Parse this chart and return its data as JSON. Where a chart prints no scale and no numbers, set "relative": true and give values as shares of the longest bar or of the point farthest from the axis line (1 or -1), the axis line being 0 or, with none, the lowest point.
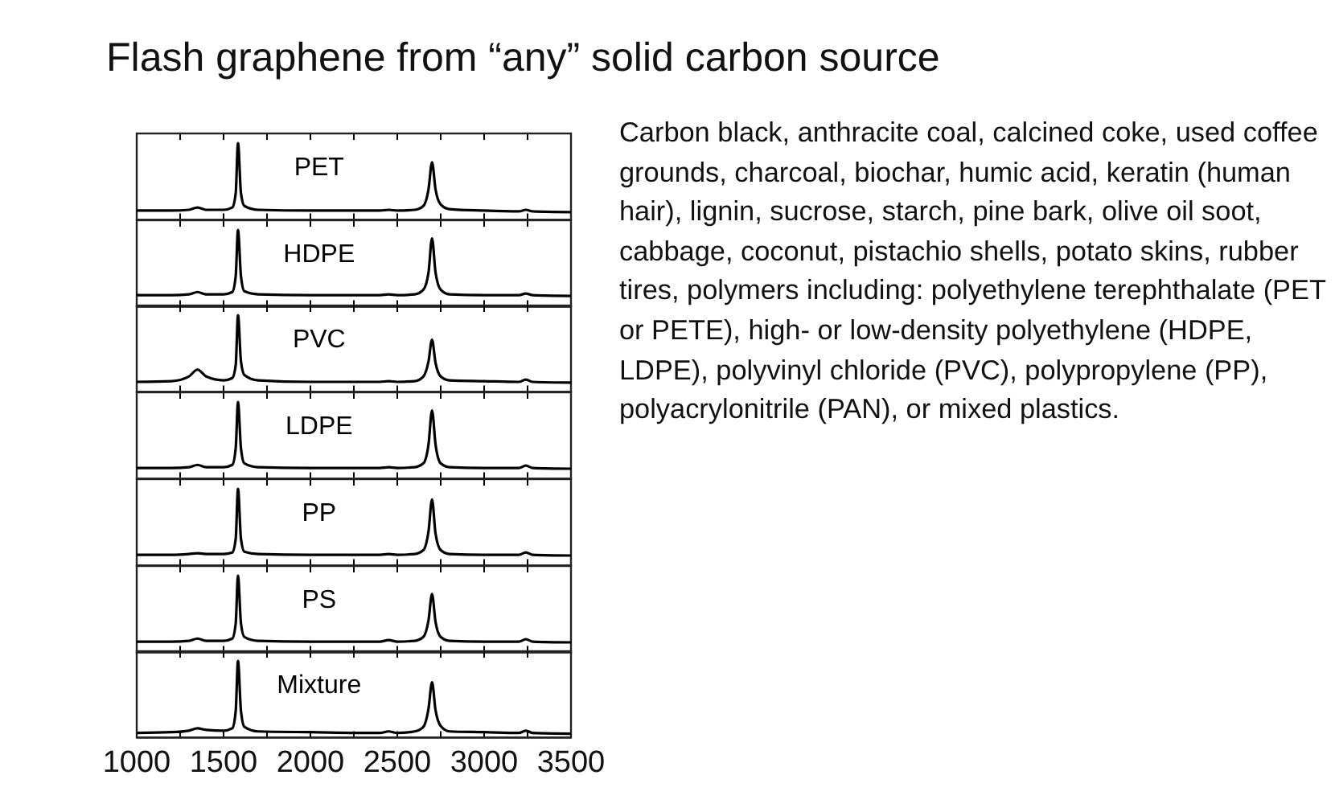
{
  "chart_data": [
    {
      "type": "line",
      "title": "Flash graphene from “any” solid carbon source",
      "relative": true,
      "xlim": [
        1000,
        3500
      ],
      "xticks": [
        1000,
        {
          "value": 1250,
          "label": null
        },
        1500,
        {
          "value": 1750,
          "label": null
        },
        2000,
        {
          "value": 2250,
          "label": null
        },
        2500,
        {
          "value": 2750,
          "label": null
        },
        3000,
        {
          "value": 3250,
          "label": null
        },
        3500
      ],
      "tick_labels": false,
      "x": [
        1000,
        1200,
        1300,
        1350,
        1400,
        1500,
        1550,
        1570,
        1583,
        1600,
        1620,
        1700,
        2000,
        2400,
        2450,
        2500,
        2600,
        2650,
        2680,
        2700,
        2720,
        2750,
        2800,
        3000,
        3200,
        3240,
        3280,
        3500
      ],
      "series": [
        {
          "name": "PET",
          "color": "#000000",
          "values": [
            0.12,
            0.12,
            0.13,
            0.16,
            0.13,
            0.13,
            0.16,
            0.35,
            1,
            0.35,
            0.18,
            0.13,
            0.12,
            0.12,
            0.13,
            0.12,
            0.13,
            0.18,
            0.4,
            0.75,
            0.4,
            0.2,
            0.14,
            0.12,
            0.11,
            0.13,
            0.11,
            0.1
          ]
        }
      ]
    },
    {
      "type": "line",
      "relative": true,
      "xlim": [
        1000,
        3500
      ],
      "xticks": [
        1000,
        {
          "value": 1250,
          "label": null
        },
        1500,
        {
          "value": 1750,
          "label": null
        },
        2000,
        {
          "value": 2250,
          "label": null
        },
        2500,
        {
          "value": 2750,
          "label": null
        },
        3000,
        {
          "value": 3250,
          "label": null
        },
        3500
      ],
      "tick_labels": false,
      "x": [
        1000,
        1200,
        1300,
        1350,
        1400,
        1500,
        1550,
        1570,
        1583,
        1600,
        1620,
        1700,
        2000,
        2400,
        2450,
        2500,
        2600,
        2650,
        2680,
        2700,
        2720,
        2750,
        2800,
        3000,
        3200,
        3240,
        3280,
        3500
      ],
      "series": [
        {
          "name": "HDPE",
          "color": "#000000",
          "values": [
            0.15,
            0.15,
            0.16,
            0.19,
            0.16,
            0.16,
            0.19,
            0.4,
            1,
            0.4,
            0.2,
            0.16,
            0.15,
            0.15,
            0.16,
            0.15,
            0.16,
            0.22,
            0.45,
            0.89,
            0.45,
            0.22,
            0.16,
            0.15,
            0.15,
            0.17,
            0.15,
            0.14
          ]
        }
      ]
    },
    {
      "type": "line",
      "relative": true,
      "xlim": [
        1000,
        3500
      ],
      "xticks": [
        1000,
        {
          "value": 1250,
          "label": null
        },
        1500,
        {
          "value": 1750,
          "label": null
        },
        2000,
        {
          "value": 2250,
          "label": null
        },
        2500,
        {
          "value": 2750,
          "label": null
        },
        3000,
        {
          "value": 3250,
          "label": null
        },
        3500
      ],
      "tick_labels": false,
      "x": [
        1000,
        1200,
        1300,
        1350,
        1400,
        1500,
        1550,
        1570,
        1583,
        1600,
        1620,
        1700,
        2000,
        2400,
        2450,
        2500,
        2600,
        2650,
        2680,
        2700,
        2720,
        2750,
        2800,
        3000,
        3200,
        3240,
        3280,
        3500
      ],
      "series": [
        {
          "name": "PVC",
          "color": "#000000",
          "values": [
            0.13,
            0.14,
            0.2,
            0.29,
            0.2,
            0.15,
            0.18,
            0.35,
            1,
            0.4,
            0.22,
            0.15,
            0.13,
            0.13,
            0.14,
            0.13,
            0.14,
            0.2,
            0.4,
            0.68,
            0.38,
            0.2,
            0.15,
            0.14,
            0.13,
            0.16,
            0.13,
            0.12
          ]
        }
      ]
    },
    {
      "type": "line",
      "relative": true,
      "xlim": [
        1000,
        3500
      ],
      "xticks": [
        1000,
        {
          "value": 1250,
          "label": null
        },
        1500,
        {
          "value": 1750,
          "label": null
        },
        2000,
        {
          "value": 2250,
          "label": null
        },
        2500,
        {
          "value": 2750,
          "label": null
        },
        3000,
        {
          "value": 3250,
          "label": null
        },
        3500
      ],
      "tick_labels": false,
      "x": [
        1000,
        1200,
        1300,
        1350,
        1400,
        1500,
        1550,
        1570,
        1583,
        1600,
        1620,
        1700,
        2000,
        2400,
        2450,
        2500,
        2600,
        2650,
        2680,
        2700,
        2720,
        2750,
        2800,
        3000,
        3200,
        3240,
        3280,
        3500
      ],
      "series": [
        {
          "name": "LDPE",
          "color": "#000000",
          "values": [
            0.14,
            0.14,
            0.15,
            0.18,
            0.15,
            0.15,
            0.18,
            0.4,
            1,
            0.4,
            0.2,
            0.15,
            0.14,
            0.14,
            0.15,
            0.14,
            0.15,
            0.2,
            0.45,
            0.89,
            0.45,
            0.2,
            0.15,
            0.14,
            0.14,
            0.17,
            0.14,
            0.13
          ]
        }
      ]
    },
    {
      "type": "line",
      "relative": true,
      "xlim": [
        1000,
        3500
      ],
      "xticks": [
        1000,
        {
          "value": 1250,
          "label": null
        },
        1500,
        {
          "value": 1750,
          "label": null
        },
        2000,
        {
          "value": 2250,
          "label": null
        },
        2500,
        {
          "value": 2750,
          "label": null
        },
        3000,
        {
          "value": 3250,
          "label": null
        },
        3500
      ],
      "tick_labels": false,
      "x": [
        1000,
        1200,
        1300,
        1350,
        1400,
        1500,
        1550,
        1570,
        1583,
        1600,
        1620,
        1700,
        2000,
        2400,
        2450,
        2500,
        2600,
        2650,
        2680,
        2700,
        2720,
        2750,
        2800,
        3000,
        3200,
        3240,
        3280,
        3500
      ],
      "series": [
        {
          "name": "PP",
          "color": "#000000",
          "values": [
            0.14,
            0.14,
            0.15,
            0.16,
            0.15,
            0.15,
            0.17,
            0.35,
            1,
            0.35,
            0.18,
            0.15,
            0.14,
            0.14,
            0.15,
            0.14,
            0.15,
            0.2,
            0.45,
            0.86,
            0.42,
            0.2,
            0.15,
            0.14,
            0.14,
            0.17,
            0.14,
            0.13
          ]
        }
      ]
    },
    {
      "type": "line",
      "relative": true,
      "xlim": [
        1000,
        3500
      ],
      "xticks": [
        1000,
        {
          "value": 1250,
          "label": null
        },
        1500,
        {
          "value": 1750,
          "label": null
        },
        2000,
        {
          "value": 2250,
          "label": null
        },
        2500,
        {
          "value": 2750,
          "label": null
        },
        3000,
        {
          "value": 3250,
          "label": null
        },
        3500
      ],
      "tick_labels": false,
      "x": [
        1000,
        1200,
        1300,
        1350,
        1400,
        1500,
        1550,
        1570,
        1583,
        1600,
        1620,
        1700,
        2000,
        2400,
        2450,
        2500,
        2600,
        2650,
        2680,
        2700,
        2720,
        2750,
        2800,
        3000,
        3200,
        3240,
        3280,
        3500
      ],
      "series": [
        {
          "name": "PS",
          "color": "#000000",
          "values": [
            0.14,
            0.14,
            0.15,
            0.18,
            0.15,
            0.15,
            0.18,
            0.38,
            1,
            0.38,
            0.2,
            0.15,
            0.14,
            0.14,
            0.16,
            0.14,
            0.15,
            0.2,
            0.42,
            0.76,
            0.4,
            0.2,
            0.15,
            0.14,
            0.14,
            0.17,
            0.14,
            0.13
          ]
        }
      ]
    },
    {
      "type": "line",
      "relative": true,
      "xlim": [
        1000,
        3500
      ],
      "xticks": [
        1000,
        {
          "value": 1250,
          "label": null
        },
        1500,
        {
          "value": 1750,
          "label": null
        },
        2000,
        {
          "value": 2250,
          "label": null
        },
        2500,
        {
          "value": 2750,
          "label": null
        },
        3000,
        {
          "value": 3250,
          "label": null
        },
        3500
      ],
      "tick_labels": "x",
      "x": [
        1000,
        1200,
        1300,
        1350,
        1400,
        1500,
        1550,
        1570,
        1583,
        1600,
        1620,
        1700,
        2000,
        2400,
        2450,
        2500,
        2600,
        2650,
        2680,
        2700,
        2720,
        2750,
        2800,
        3000,
        3200,
        3240,
        3280,
        3500
      ],
      "series": [
        {
          "name": "Mixture",
          "color": "#000000",
          "values": [
            0.06,
            0.07,
            0.09,
            0.12,
            0.1,
            0.09,
            0.12,
            0.35,
            1,
            0.35,
            0.14,
            0.08,
            0.07,
            0.06,
            0.08,
            0.06,
            0.08,
            0.14,
            0.38,
            0.72,
            0.36,
            0.15,
            0.08,
            0.07,
            0.06,
            0.09,
            0.06,
            0.05
          ]
        }
      ]
    },
    {
      "type": "other",
      "annotations": [
        "Carbon black, anthracite coal, calcined coke, used coffee grounds, charcoal, biochar, humic acid, keratin (human hair), lignin, sucrose, starch, pine bark, olive oil soot, cabbage, coconut, pistachio shells, potato skins, rubber tires, polymers including: polyethylene terephthalate (PET or PETE), high- or low-density polyethylene (HDPE, LDPE), polyvinyl chloride (PVC), polypropylene (PP), polyacrylonitrile (PAN), or mixed plastics."
      ]
    }
  ]
}
